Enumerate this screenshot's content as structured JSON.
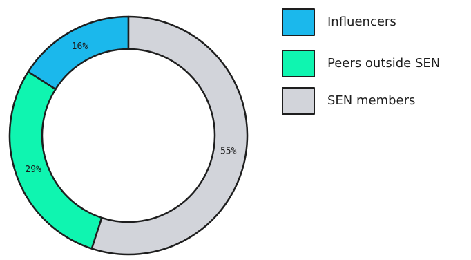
{
  "chart_data": {
    "type": "pie",
    "donut": true,
    "title": "",
    "categories": [
      "Influencers",
      "Peers outside SEN",
      "SEN members"
    ],
    "values": [
      16,
      29,
      55
    ],
    "value_labels": [
      "16%",
      "29%",
      "55%"
    ],
    "colors": [
      "#1bb8ec",
      "#0ff5b0",
      "#d2d4da"
    ],
    "legend_placement": "top-right",
    "start": "12 o'clock, counter-clockwise"
  },
  "legend": {
    "items": [
      {
        "label": "Influencers",
        "color": "#1bb8ec"
      },
      {
        "label": "Peers outside SEN",
        "color": "#0ff5b0"
      },
      {
        "label": "SEN members",
        "color": "#d2d4da"
      }
    ]
  }
}
